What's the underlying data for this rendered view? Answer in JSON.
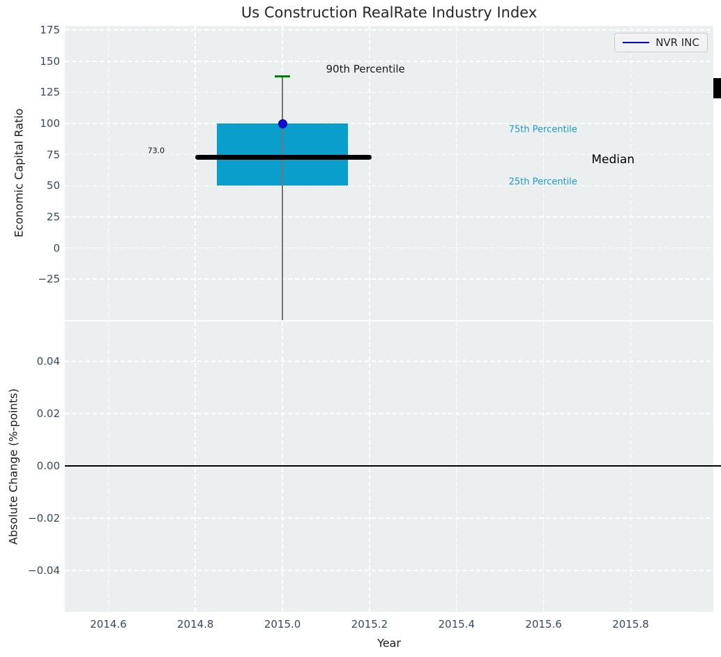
{
  "figure": {
    "background": "#ffffff",
    "axes_background": "#ebeff0",
    "grid_color": "#ffffff",
    "tick_color": "#36495e"
  },
  "legend": {
    "label": "NVR INC",
    "line_color": "#0000cd"
  },
  "artifacts": {
    "right_edge_black_box": true
  },
  "chart_data": [
    {
      "type": "boxplot",
      "title": "Us Construction RealRate Industry Index",
      "xlabel": "Year",
      "ylabel": "Economic Capital Ratio",
      "xlim": [
        2014.5,
        2015.99
      ],
      "ylim": [
        -58,
        178.5
      ],
      "grid": "dashed-white",
      "legend_position": "upper-right",
      "x_tick_values": [
        2014.6,
        2014.8,
        2015.0,
        2015.2,
        2015.4,
        2015.6,
        2015.8
      ],
      "x_tick_labels": [
        "2014.6",
        "2014.8",
        "2015.0",
        "2015.2",
        "2015.4",
        "2015.6",
        "2015.8"
      ],
      "y_tick_values": [
        175,
        150,
        125,
        100,
        75,
        50,
        25,
        0,
        -25
      ],
      "y_tick_labels": [
        "175",
        "150",
        "125",
        "100",
        "75",
        "50",
        "25",
        "0",
        "−25"
      ],
      "legend": [
        {
          "label": "NVR INC",
          "color": "#0000cd"
        }
      ],
      "box": {
        "x_center": 2015.0,
        "box_left": 2014.85,
        "box_right": 2015.15,
        "q1": 50,
        "q3": 100,
        "median": 73.0,
        "median_left": 2014.8,
        "median_right": 2015.205,
        "p90": 138,
        "whisker_low_clipped_at": -58,
        "box_color": "#0a9ecd",
        "median_color": "#000000",
        "whisker_color": "#757575",
        "cap_color": "#008000"
      },
      "company_point": {
        "x": 2015.0,
        "y": 100,
        "color": "#0d0ed2",
        "edge": "#0000a0"
      },
      "annotations": [
        {
          "text": "90th Percentile",
          "x": 2015.1,
          "y": 143.5,
          "color": "#1a1a1a",
          "size": 15
        },
        {
          "text": "75th Percentile",
          "x": 2015.52,
          "y": 95,
          "color": "#1f9bc9",
          "size": 13
        },
        {
          "text": "Median",
          "x": 2015.71,
          "y": 71,
          "color": "#000000",
          "size": 17
        },
        {
          "text": "25th Percentile",
          "x": 2015.52,
          "y": 53,
          "color": "#1f9bc9",
          "size": 13
        },
        {
          "text": "73.0",
          "x": 2014.69,
          "y": 78,
          "color": "#111111",
          "size": 11
        }
      ]
    },
    {
      "type": "line",
      "xlabel": "Year",
      "ylabel": "Absolute Change (%-points)",
      "xlim": [
        2014.5,
        2015.99
      ],
      "ylim": [
        -0.0557,
        0.0552
      ],
      "grid": "dashed-white",
      "x_tick_values": [
        2014.6,
        2014.8,
        2015.0,
        2015.2,
        2015.4,
        2015.6,
        2015.8
      ],
      "x_tick_labels": [
        "2014.6",
        "2014.8",
        "2015.0",
        "2015.2",
        "2015.4",
        "2015.6",
        "2015.8"
      ],
      "y_tick_values": [
        0.04,
        0.02,
        0.0,
        -0.02,
        -0.04
      ],
      "y_tick_labels": [
        "0.04",
        "0.02",
        "0.00",
        "−0.02",
        "−0.04"
      ],
      "zero_line": {
        "y": 0.0,
        "color": "#000000"
      },
      "series": []
    }
  ]
}
